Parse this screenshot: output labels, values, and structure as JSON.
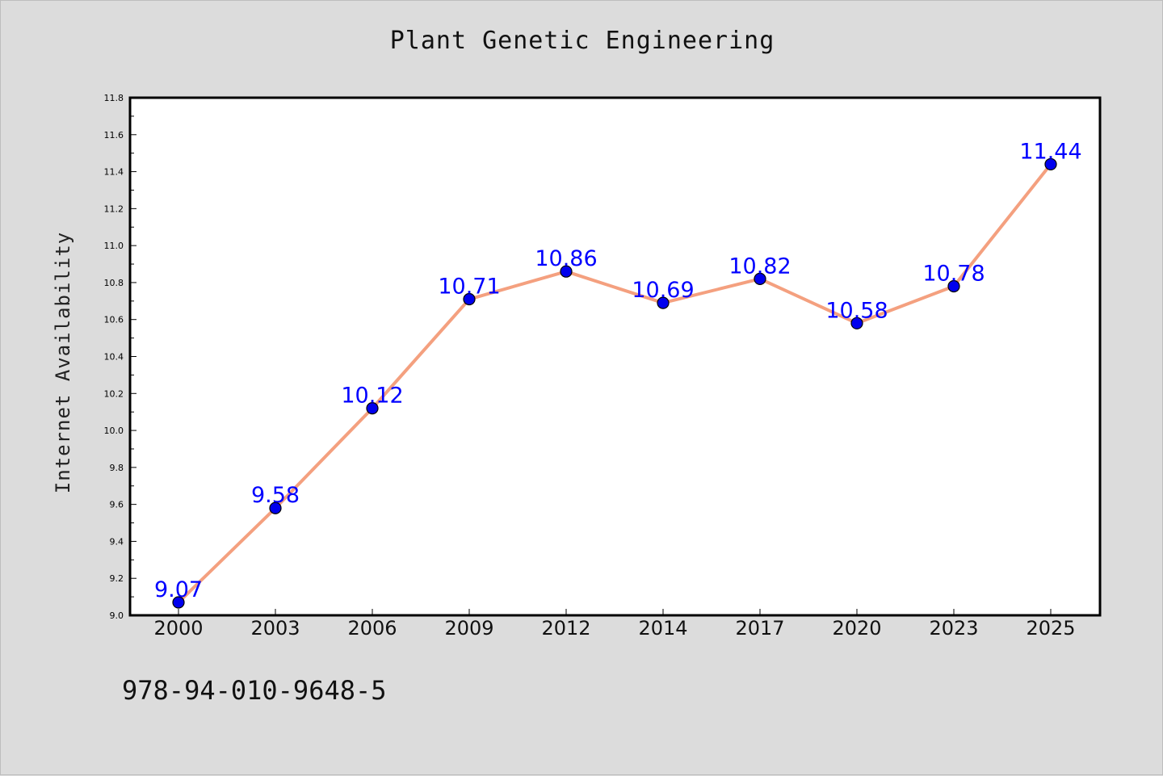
{
  "chart_data": {
    "type": "line",
    "title": "Plant Genetic Engineering",
    "xlabel": "",
    "ylabel": "Internet Availability",
    "categories": [
      "2000",
      "2003",
      "2006",
      "2009",
      "2012",
      "2014",
      "2017",
      "2020",
      "2023",
      "2025"
    ],
    "series": [
      {
        "values": [
          9.07,
          9.58,
          10.12,
          10.71,
          10.86,
          10.69,
          10.82,
          10.58,
          10.78,
          11.44
        ]
      }
    ],
    "data_labels": [
      "9.07",
      "9.58",
      "10.12",
      "10.71",
      "10.86",
      "10.69",
      "10.82",
      "10.58",
      "10.78",
      "11.44"
    ],
    "ylim": [
      9.0,
      11.8
    ],
    "yticks": [
      "9.0",
      "9.2",
      "9.4",
      "9.6",
      "9.8",
      "10.0",
      "10.2",
      "10.4",
      "10.6",
      "10.8",
      "11.0",
      "11.2",
      "11.4",
      "11.6",
      "11.8"
    ],
    "grid": false,
    "legend": "none",
    "colors": {
      "line": "#f4a07f",
      "marker": "#0000ee",
      "marker_edge": "#000000",
      "data_label": "#0000ff",
      "background": "#dcdcdc",
      "plot_area": "#ffffff"
    }
  },
  "footer": {
    "isbn": "978-94-010-9648-5"
  }
}
